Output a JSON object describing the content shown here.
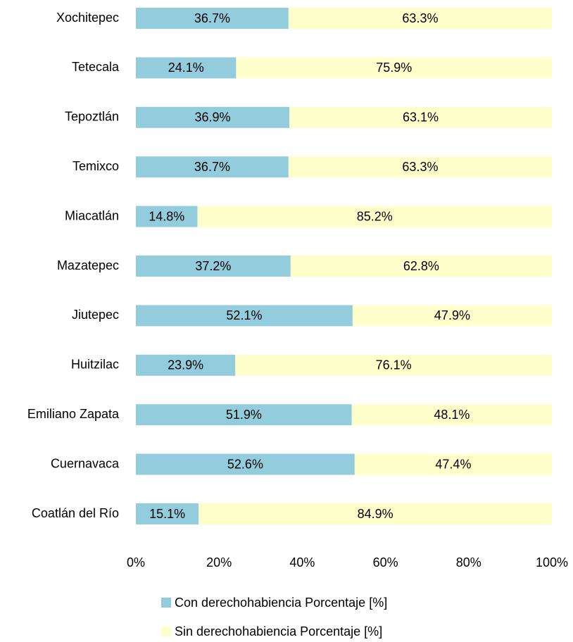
{
  "chart_data": {
    "type": "stacked-bar-horizontal",
    "categories": [
      "Xochitepec",
      "Tetecala",
      "Tepoztlán",
      "Temixco",
      "Miacatlán",
      "Mazatepec",
      "Jiutepec",
      "Huitzilac",
      "Emiliano Zapata",
      "Cuernavaca",
      "Coatlán del Río"
    ],
    "series": [
      {
        "name": "Con derechohabiencia Porcentaje [%]",
        "color": "#93cddd",
        "values": [
          36.7,
          24.1,
          36.9,
          36.7,
          14.8,
          37.2,
          52.1,
          23.9,
          51.9,
          52.6,
          15.1
        ],
        "value_labels": [
          "36.7%",
          "24.1%",
          "36.9%",
          "36.7%",
          "14.8%",
          "37.2%",
          "52.1%",
          "23.9%",
          "51.9%",
          "52.6%",
          "15.1%"
        ]
      },
      {
        "name": "Sin derechohabiencia Porcentaje [%]",
        "color": "#ffffcc",
        "values": [
          63.3,
          75.9,
          63.1,
          63.3,
          85.2,
          62.8,
          47.9,
          76.1,
          48.1,
          47.4,
          84.9
        ],
        "value_labels": [
          "63.3%",
          "75.9%",
          "63.1%",
          "63.3%",
          "85.2%",
          "62.8%",
          "47.9%",
          "76.1%",
          "48.1%",
          "47.4%",
          "84.9%"
        ]
      }
    ],
    "xlim": [
      0,
      100
    ],
    "xticks": [
      {
        "value": 0,
        "label": "0%"
      },
      {
        "value": 20,
        "label": "20%"
      },
      {
        "value": 40,
        "label": "40%"
      },
      {
        "value": 60,
        "label": "60%"
      },
      {
        "value": 80,
        "label": "80%"
      },
      {
        "value": 100,
        "label": "100%"
      }
    ],
    "legend": "bottom"
  }
}
